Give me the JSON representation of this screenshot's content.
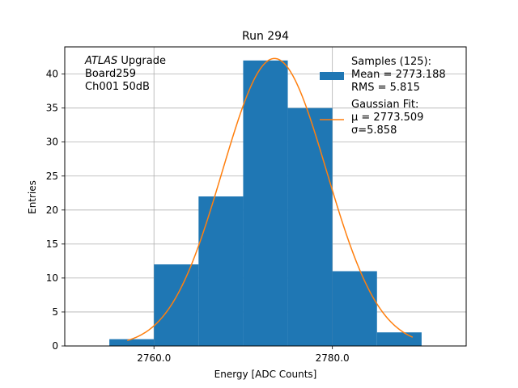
{
  "chart_data": {
    "type": "bar",
    "title": "Run 294",
    "xlabel": "Energy [ADC Counts]",
    "ylabel": "Entries",
    "xlim": [
      2750,
      2795
    ],
    "ylim": [
      0,
      44
    ],
    "x_ticks": [
      2760,
      2780
    ],
    "x_tick_labels": [
      "2760.0",
      "2780.0"
    ],
    "y_ticks": [
      0,
      5,
      10,
      15,
      20,
      25,
      30,
      35,
      40
    ],
    "grid": true,
    "bins": [
      {
        "x0": 2755,
        "x1": 2760,
        "count": 1
      },
      {
        "x0": 2760,
        "x1": 2765,
        "count": 12
      },
      {
        "x0": 2765,
        "x1": 2770,
        "count": 22
      },
      {
        "x0": 2770,
        "x1": 2775,
        "count": 42
      },
      {
        "x0": 2775,
        "x1": 2780,
        "count": 35
      },
      {
        "x0": 2780,
        "x1": 2785,
        "count": 11
      },
      {
        "x0": 2785,
        "x1": 2790,
        "count": 2
      }
    ],
    "fit": {
      "mu": 2773.509,
      "sigma": 5.858,
      "amplitude": 42.3,
      "x_range": [
        2757,
        2789
      ]
    },
    "annotation_lines": [
      {
        "italic": "ATLAS",
        "text": " Upgrade"
      },
      {
        "italic": "",
        "text": " Board259"
      },
      {
        "italic": "",
        "text": " Ch001 50dB"
      }
    ],
    "legend": {
      "placement": "top-right",
      "hist_lines": [
        "Samples (125):",
        " Mean = 2773.188",
        " RMS = 5.815"
      ],
      "fit_lines": [
        "Gaussian Fit:",
        " μ = 2773.509",
        " σ=5.858"
      ]
    },
    "colors": {
      "bar": "#1f77b4",
      "fit": "#ff7f0e",
      "grid": "#b0b0b0"
    }
  }
}
